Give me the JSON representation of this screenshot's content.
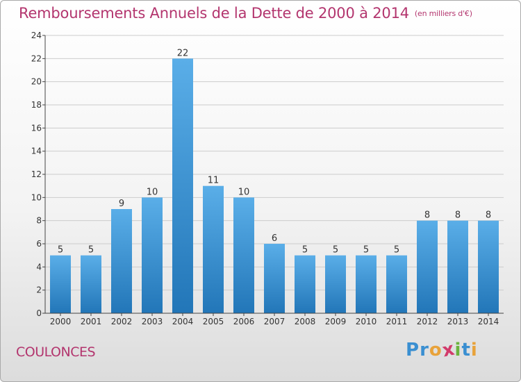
{
  "header": {
    "title": "Remboursements Annuels de la Dette de 2000 à 2014",
    "unit": "(en milliers d'€)"
  },
  "footer": {
    "commune": "COULONCES",
    "logo_letters": [
      "P",
      "r",
      "o",
      "x",
      "i",
      "t",
      "i"
    ]
  },
  "colors": {
    "bar_top": "#5aaee8",
    "bar_bottom": "#2276b8",
    "title": "#b3356e",
    "grid": "#cccccc",
    "logo": [
      "#3a8fd1",
      "#3a8fd1",
      "#e8a23a",
      "#d23b6b",
      "#6bb33d",
      "#3a8fd1",
      "#e8a23a"
    ]
  },
  "chart_data": {
    "type": "bar",
    "title": "Remboursements Annuels de la Dette de 2000 à 2014",
    "xlabel": "",
    "ylabel": "",
    "categories": [
      "2000",
      "2001",
      "2002",
      "2003",
      "2004",
      "2005",
      "2006",
      "2007",
      "2008",
      "2009",
      "2010",
      "2011",
      "2012",
      "2013",
      "2014"
    ],
    "values": [
      5,
      5,
      9,
      10,
      22,
      11,
      10,
      6,
      5,
      5,
      5,
      5,
      8,
      8,
      8
    ],
    "ylim": [
      0,
      24
    ],
    "yticks": [
      0,
      2,
      4,
      6,
      8,
      10,
      12,
      14,
      16,
      18,
      20,
      22,
      24
    ],
    "grid": true,
    "data_labels": true
  }
}
